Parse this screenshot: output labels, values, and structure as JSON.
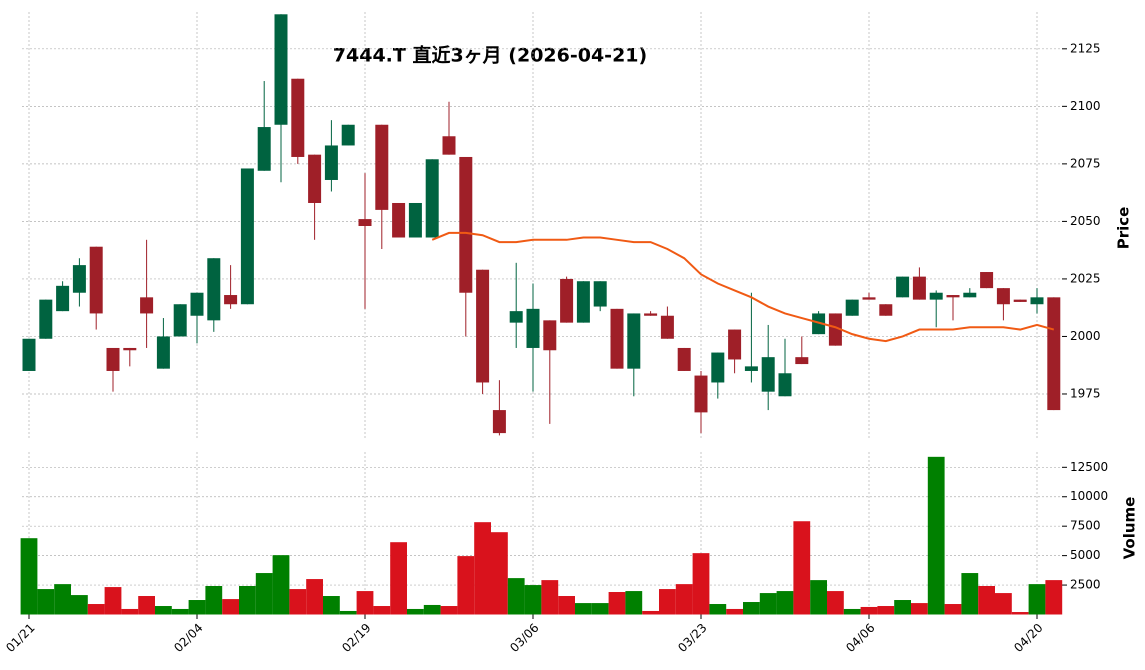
{
  "chart_data": [
    {
      "type": "candlestick",
      "title": "7444.T  直近3ヶ月  (2026-04-21)",
      "ylabel": "Price",
      "categories": [
        "01/21",
        null,
        null,
        null,
        null,
        null,
        null,
        null,
        null,
        null,
        "02/04",
        null,
        null,
        null,
        null,
        null,
        null,
        null,
        null,
        null,
        "02/19",
        null,
        null,
        null,
        null,
        null,
        null,
        null,
        null,
        null,
        "03/06",
        null,
        null,
        null,
        null,
        null,
        null,
        null,
        null,
        null,
        "03/23",
        null,
        null,
        null,
        null,
        null,
        null,
        null,
        null,
        null,
        "04/06",
        null,
        null,
        null,
        null,
        null,
        null,
        null,
        null,
        null,
        "04/20",
        null
      ],
      "open": [
        1985,
        1999,
        2011,
        2019,
        2039,
        1995,
        1995,
        2017,
        1986,
        2000,
        2009,
        2007,
        2018,
        2014,
        2072,
        2092,
        2112,
        2079,
        2068,
        2083,
        2051,
        2092,
        2058,
        2043,
        2043,
        2087,
        2078,
        2029,
        1968,
        2006,
        1995,
        2007,
        2025,
        2006,
        2013,
        2012,
        1986,
        2010,
        2009,
        1995,
        1983,
        1980,
        2003,
        1985,
        1976,
        1974,
        1991,
        2001,
        2010,
        2009,
        2017,
        2014,
        2017,
        2026,
        2016,
        2018,
        2017,
        2028,
        2021,
        2016,
        2014,
        2017
      ],
      "high": [
        1999,
        2016,
        2024,
        2034,
        2039,
        1995,
        1995,
        2042,
        2008,
        2014,
        2019,
        2034,
        2031,
        2073,
        2111,
        2140,
        2112,
        2079,
        2094,
        2092,
        2071,
        2092,
        2058,
        2058,
        2077,
        2102,
        2078,
        2029,
        1981,
        2032,
        2023,
        2007,
        2026,
        2024,
        2024,
        2012,
        2010,
        2011,
        2013,
        1995,
        1985,
        1993,
        2003,
        2019,
        2005,
        1999,
        2000,
        2011,
        2010,
        2016,
        2019,
        2014,
        2026,
        2030,
        2020,
        2018,
        2021,
        2028,
        2021,
        2016,
        2021,
        2017
      ],
      "low": [
        1985,
        1999,
        2011,
        2013,
        2003,
        1976,
        1987,
        1995,
        1986,
        2000,
        1997,
        2002,
        2012,
        2014,
        2072,
        2067,
        2075,
        2042,
        2063,
        2083,
        2012,
        2038,
        2043,
        2043,
        2043,
        2079,
        2000,
        1975,
        1957,
        1995,
        1976,
        1962,
        2006,
        2006,
        2011,
        1986,
        1974,
        2009,
        1999,
        1985,
        1958,
        1973,
        1984,
        1980,
        1968,
        1974,
        1988,
        2001,
        1996,
        2009,
        2016,
        2009,
        2017,
        2016,
        2004,
        2007,
        2017,
        2021,
        2007,
        2015,
        2010,
        1968
      ],
      "close": [
        1999,
        2016,
        2022,
        2031,
        2010,
        1985,
        1994,
        2010,
        2000,
        2014,
        2019,
        2034,
        2014,
        2073,
        2091,
        2140,
        2078,
        2058,
        2083,
        2092,
        2048,
        2055,
        2043,
        2058,
        2077,
        2079,
        2019,
        1980,
        1958,
        2011,
        2012,
        1994,
        2006,
        2024,
        2024,
        1986,
        2010,
        2009,
        1999,
        1985,
        1967,
        1993,
        1990,
        1987,
        1991,
        1984,
        1988,
        2010,
        1996,
        2016,
        2016,
        2009,
        2026,
        2016,
        2019,
        2017,
        2019,
        2021,
        2014,
        2015,
        2017,
        1968
      ],
      "up_color": "#006340",
      "down_color": "#9f1f28",
      "ma": {
        "color": "#f05a14",
        "values": [
          null,
          null,
          null,
          null,
          null,
          null,
          null,
          null,
          null,
          null,
          null,
          null,
          null,
          null,
          null,
          null,
          null,
          null,
          null,
          null,
          null,
          null,
          null,
          null,
          2042,
          2045,
          2045,
          2044,
          2041,
          2041,
          2042,
          2042,
          2042,
          2043,
          2043,
          2042,
          2041,
          2041,
          2038,
          2034,
          2027,
          2023,
          2020,
          2017,
          2013,
          2010,
          2008,
          2006,
          2004,
          2001,
          1999,
          1998,
          2000,
          2003,
          2003,
          2003,
          2004,
          2004,
          2004,
          2003,
          2005,
          2003
        ]
      },
      "ylim": [
        1955,
        2141
      ],
      "yticks": [
        1975,
        2000,
        2025,
        2050,
        2075,
        2100,
        2125
      ],
      "grid": true
    },
    {
      "type": "bar",
      "ylabel": "Volume",
      "values": [
        6480,
        2160,
        2580,
        1650,
        890,
        2330,
        470,
        1570,
        720,
        470,
        1230,
        2420,
        1310,
        2420,
        3520,
        5040,
        2160,
        3010,
        1570,
        300,
        1990,
        720,
        6140,
        470,
        810,
        720,
        4960,
        7840,
        6990,
        3090,
        2500,
        2920,
        1570,
        970,
        970,
        1910,
        1990,
        300,
        2160,
        2580,
        5210,
        890,
        470,
        1060,
        1820,
        1990,
        7920,
        2920,
        1990,
        470,
        640,
        720,
        1230,
        970,
        13390,
        890,
        3520,
        2420,
        1820,
        210,
        2580,
        2920
      ],
      "up_color": "#008000",
      "down_color": "#d9121c",
      "ylim": [
        0,
        13800
      ],
      "yticks": [
        2500,
        5000,
        7500,
        10000,
        12500
      ],
      "grid": true
    }
  ]
}
